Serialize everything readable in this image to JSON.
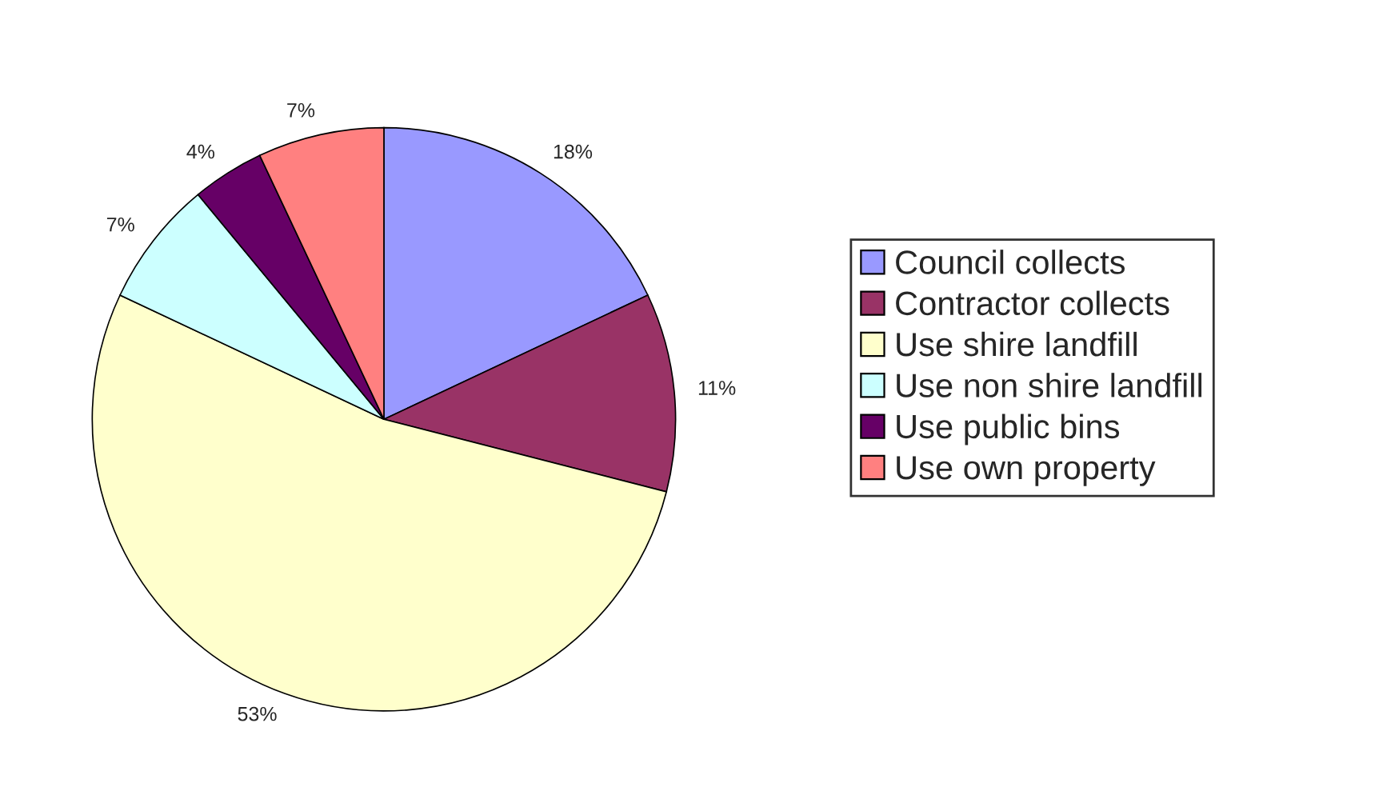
{
  "chart_data": {
    "type": "pie",
    "categories": [
      "Council collects",
      "Contractor collects",
      "Use shire landfill",
      "Use non shire landfill",
      "Use public bins",
      "Use own property"
    ],
    "values": [
      18,
      11,
      53,
      7,
      4,
      7
    ],
    "colors": [
      "#9999ff",
      "#993366",
      "#ffffcc",
      "#ccffff",
      "#660066",
      "#ff8080"
    ],
    "value_labels": [
      "18%",
      "11%",
      "53%",
      "7%",
      "4%",
      "7%"
    ],
    "legend": "right"
  }
}
